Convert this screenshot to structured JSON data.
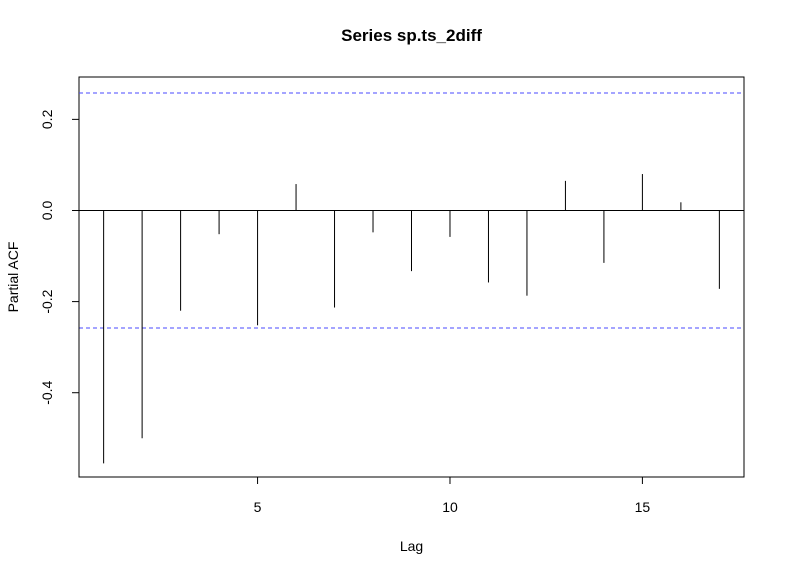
{
  "chart_data": {
    "type": "bar",
    "title": "Series  sp.ts_2diff",
    "xlabel": "Lag",
    "ylabel": "Partial ACF",
    "x": [
      1,
      2,
      3,
      4,
      5,
      6,
      7,
      8,
      9,
      10,
      11,
      12,
      13,
      14,
      15,
      16,
      17
    ],
    "values": [
      -0.555,
      -0.5,
      -0.22,
      -0.052,
      -0.252,
      0.058,
      -0.213,
      -0.048,
      -0.133,
      -0.058,
      -0.158,
      -0.187,
      0.065,
      -0.115,
      0.08,
      0.018,
      -0.172
    ],
    "xlim": [
      0.36,
      17.64
    ],
    "ylim": [
      -0.585,
      0.293
    ],
    "x_ticks": [
      5,
      10,
      15
    ],
    "y_ticks": [
      -0.4,
      -0.2,
      0.0,
      0.2
    ],
    "x_tick_labels": [
      "5",
      "10",
      "15"
    ],
    "y_tick_labels": [
      "-0.4",
      "-0.2",
      "0.0",
      "0.2"
    ],
    "confidence_bounds": [
      0.258,
      -0.258
    ],
    "confidence_color": "#4a4aff",
    "bar_color": "#000000",
    "grid": false
  }
}
